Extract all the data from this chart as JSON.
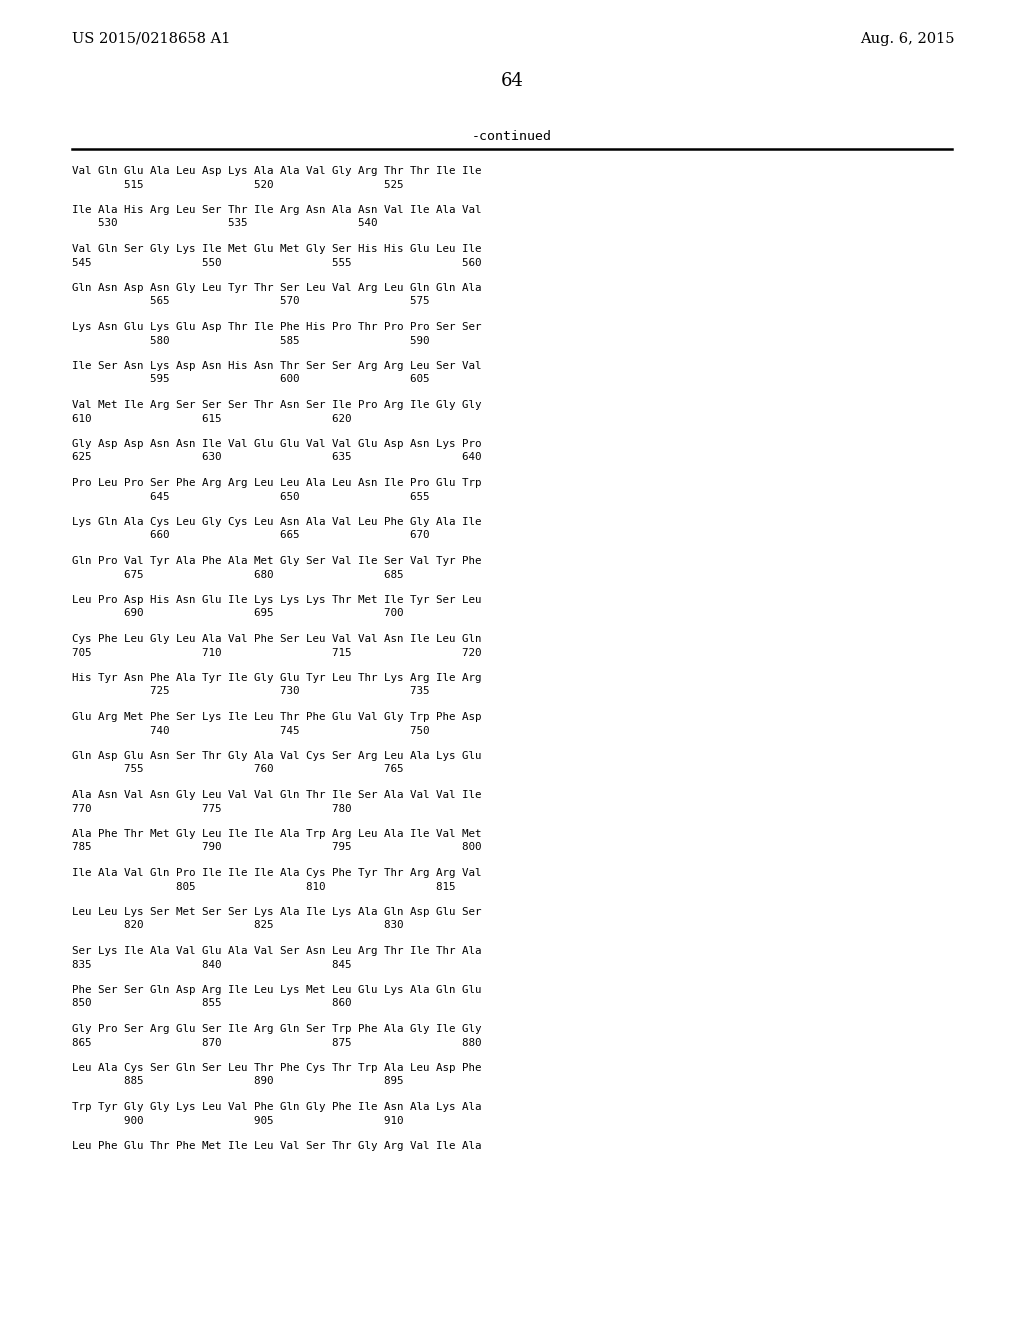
{
  "patent_number": "US 2015/0218658 A1",
  "date": "Aug. 6, 2015",
  "page_number": "64",
  "continued_label": "-continued",
  "background_color": "#ffffff",
  "text_color": "#000000",
  "sequences": [
    [
      "Val Gln Glu Ala Leu Asp Lys Ala Ala Val Gly Arg Thr Thr Ile Ile",
      "        515                 520                 525"
    ],
    [
      "Ile Ala His Arg Leu Ser Thr Ile Arg Asn Ala Asn Val Ile Ala Val",
      "    530                 535                 540"
    ],
    [
      "Val Gln Ser Gly Lys Ile Met Glu Met Gly Ser His His Glu Leu Ile",
      "545                 550                 555                 560"
    ],
    [
      "Gln Asn Asp Asn Gly Leu Tyr Thr Ser Leu Val Arg Leu Gln Gln Ala",
      "            565                 570                 575"
    ],
    [
      "Lys Asn Glu Lys Glu Asp Thr Ile Phe His Pro Thr Pro Pro Ser Ser",
      "            580                 585                 590"
    ],
    [
      "Ile Ser Asn Lys Asp Asn His Asn Thr Ser Ser Arg Arg Leu Ser Val",
      "            595                 600                 605"
    ],
    [
      "Val Met Ile Arg Ser Ser Ser Thr Asn Ser Ile Pro Arg Ile Gly Gly",
      "610                 615                 620"
    ],
    [
      "Gly Asp Asp Asn Asn Ile Val Glu Glu Val Val Glu Asp Asn Lys Pro",
      "625                 630                 635                 640"
    ],
    [
      "Pro Leu Pro Ser Phe Arg Arg Leu Leu Ala Leu Asn Ile Pro Glu Trp",
      "            645                 650                 655"
    ],
    [
      "Lys Gln Ala Cys Leu Gly Cys Leu Asn Ala Val Leu Phe Gly Ala Ile",
      "            660                 665                 670"
    ],
    [
      "Gln Pro Val Tyr Ala Phe Ala Met Gly Ser Val Ile Ser Val Tyr Phe",
      "        675                 680                 685"
    ],
    [
      "Leu Pro Asp His Asn Glu Ile Lys Lys Lys Thr Met Ile Tyr Ser Leu",
      "        690                 695                 700"
    ],
    [
      "Cys Phe Leu Gly Leu Ala Val Phe Ser Leu Val Val Asn Ile Leu Gln",
      "705                 710                 715                 720"
    ],
    [
      "His Tyr Asn Phe Ala Tyr Ile Gly Glu Tyr Leu Thr Lys Arg Ile Arg",
      "            725                 730                 735"
    ],
    [
      "Glu Arg Met Phe Ser Lys Ile Leu Thr Phe Glu Val Gly Trp Phe Asp",
      "            740                 745                 750"
    ],
    [
      "Gln Asp Glu Asn Ser Thr Gly Ala Val Cys Ser Arg Leu Ala Lys Glu",
      "        755                 760                 765"
    ],
    [
      "Ala Asn Val Asn Gly Leu Val Val Gln Thr Ile Ser Ala Val Val Ile",
      "770                 775                 780"
    ],
    [
      "Ala Phe Thr Met Gly Leu Ile Ile Ala Trp Arg Leu Ala Ile Val Met",
      "785                 790                 795                 800"
    ],
    [
      "Ile Ala Val Gln Pro Ile Ile Ile Ala Cys Phe Tyr Thr Arg Arg Val",
      "                805                 810                 815"
    ],
    [
      "Leu Leu Lys Ser Met Ser Ser Lys Ala Ile Lys Ala Gln Asp Glu Ser",
      "        820                 825                 830"
    ],
    [
      "Ser Lys Ile Ala Val Glu Ala Val Ser Asn Leu Arg Thr Ile Thr Ala",
      "835                 840                 845"
    ],
    [
      "Phe Ser Ser Gln Asp Arg Ile Leu Lys Met Leu Glu Lys Ala Gln Glu",
      "850                 855                 860"
    ],
    [
      "Gly Pro Ser Arg Glu Ser Ile Arg Gln Ser Trp Phe Ala Gly Ile Gly",
      "865                 870                 875                 880"
    ],
    [
      "Leu Ala Cys Ser Gln Ser Leu Thr Phe Cys Thr Trp Ala Leu Asp Phe",
      "        885                 890                 895"
    ],
    [
      "Trp Tyr Gly Gly Lys Leu Val Phe Gln Gly Phe Ile Asn Ala Lys Ala",
      "        900                 905                 910"
    ],
    [
      "Leu Phe Glu Thr Phe Met Ile Leu Val Ser Thr Gly Arg Val Ile Ala",
      ""
    ]
  ]
}
